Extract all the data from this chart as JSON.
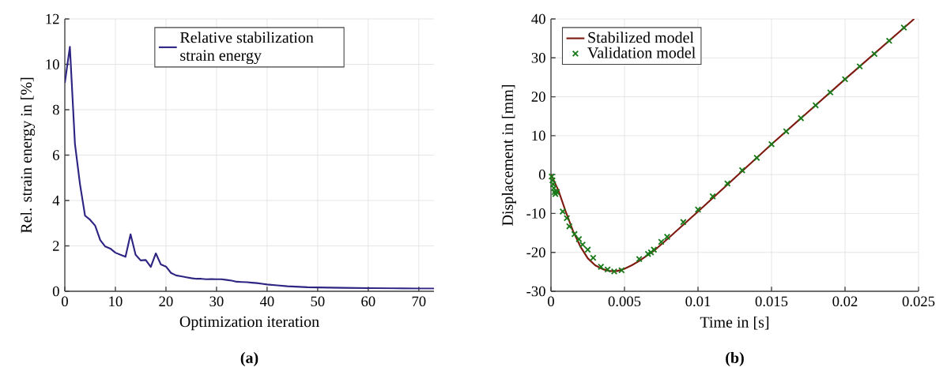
{
  "chart_data": [
    {
      "type": "line",
      "xlabel": "Optimization iteration",
      "ylabel": "Rel. strain energy in [%]",
      "annotations": [
        "(a)"
      ],
      "grid": true,
      "legend": "top",
      "xlim": [
        0,
        73
      ],
      "ylim": [
        0,
        12
      ],
      "xticks": [
        0,
        10,
        20,
        30,
        40,
        50,
        60,
        70
      ],
      "yticks": [
        0,
        2,
        4,
        6,
        8,
        10,
        12
      ],
      "x": [
        0,
        1,
        2,
        3,
        4,
        5,
        6,
        7,
        8,
        9,
        10,
        11,
        12,
        13,
        14,
        15,
        16,
        17,
        18,
        19,
        20,
        21,
        22,
        23,
        24,
        25,
        26,
        27,
        28,
        29,
        30,
        31,
        32,
        33,
        34,
        35,
        36,
        37,
        38,
        39,
        40,
        42,
        44,
        46,
        48,
        50,
        55,
        60,
        65,
        70,
        73
      ],
      "series": [
        {
          "name": "Relative stabilization strain energy",
          "color": "#2e2583",
          "marker": "none",
          "values": [
            9.18,
            10.77,
            6.5,
            4.72,
            3.33,
            3.15,
            2.89,
            2.26,
            1.97,
            1.88,
            1.7,
            1.61,
            1.52,
            2.51,
            1.61,
            1.36,
            1.38,
            1.07,
            1.67,
            1.18,
            1.09,
            0.81,
            0.7,
            0.66,
            0.62,
            0.58,
            0.55,
            0.55,
            0.53,
            0.54,
            0.53,
            0.53,
            0.5,
            0.47,
            0.42,
            0.41,
            0.4,
            0.38,
            0.36,
            0.33,
            0.3,
            0.26,
            0.22,
            0.2,
            0.18,
            0.17,
            0.15,
            0.14,
            0.13,
            0.12,
            0.12
          ]
        }
      ]
    },
    {
      "type": "line",
      "xlabel": "Time in [s]",
      "ylabel": "Displacement in [mm]",
      "annotations": [
        "(b)"
      ],
      "grid": true,
      "legend": "top left",
      "xlim": [
        0,
        0.025
      ],
      "ylim": [
        -30,
        40
      ],
      "xticks": [
        0,
        0.005,
        0.01,
        0.015,
        0.02,
        0.025
      ],
      "yticks": [
        -30,
        -20,
        -10,
        0,
        10,
        20,
        30,
        40
      ],
      "series": [
        {
          "name": "Stabilized model",
          "type": "line",
          "color": "#7f1a10",
          "marker": "none",
          "x": [
            0,
            0.0005,
            0.001,
            0.0015,
            0.002,
            0.0025,
            0.003,
            0.0035,
            0.004,
            0.0045,
            0.005,
            0.0055,
            0.006,
            0.007,
            0.008,
            0.009,
            0.01,
            0.015,
            0.02,
            0.0247
          ],
          "values": [
            0,
            -4,
            -9.5,
            -14.5,
            -18.5,
            -21.5,
            -23.3,
            -24.3,
            -24.8,
            -24.8,
            -24.2,
            -23.3,
            -22.2,
            -19.6,
            -16.3,
            -12.9,
            -9.5,
            7.8,
            24.5,
            40
          ]
        },
        {
          "name": "Validation model",
          "type": "scatter",
          "color": "#1a7a1a",
          "marker": "cross",
          "x": [
            5e-05,
            0.0001,
            0.00015,
            0.0002,
            0.00025,
            0.0003,
            0.0004,
            0.0008,
            0.00108,
            0.00125,
            0.0016,
            0.0019,
            0.00215,
            0.0025,
            0.00287,
            0.0034,
            0.00385,
            0.0043,
            0.0048,
            0.006,
            0.0066,
            0.0068,
            0.007,
            0.0075,
            0.0079,
            0.009,
            0.01,
            0.011,
            0.012,
            0.013,
            0.014,
            0.015,
            0.016,
            0.017,
            0.018,
            0.019,
            0.02,
            0.021,
            0.022,
            0.023,
            0.024
          ],
          "values": [
            -0.5,
            -1.5,
            -2.5,
            -3.5,
            -4.5,
            -5,
            -4.5,
            -9.5,
            -11.2,
            -13.3,
            -15.3,
            -16.6,
            -18,
            -19.3,
            -21.4,
            -23.7,
            -24.4,
            -24.9,
            -24.6,
            -21.7,
            -20.4,
            -20,
            -19.3,
            -17.3,
            -16,
            -12.2,
            -9,
            -5.6,
            -2.3,
            1.1,
            4.3,
            7.8,
            11.1,
            14.5,
            17.8,
            21.1,
            24.5,
            27.8,
            31,
            34.4,
            37.8
          ]
        }
      ]
    }
  ]
}
